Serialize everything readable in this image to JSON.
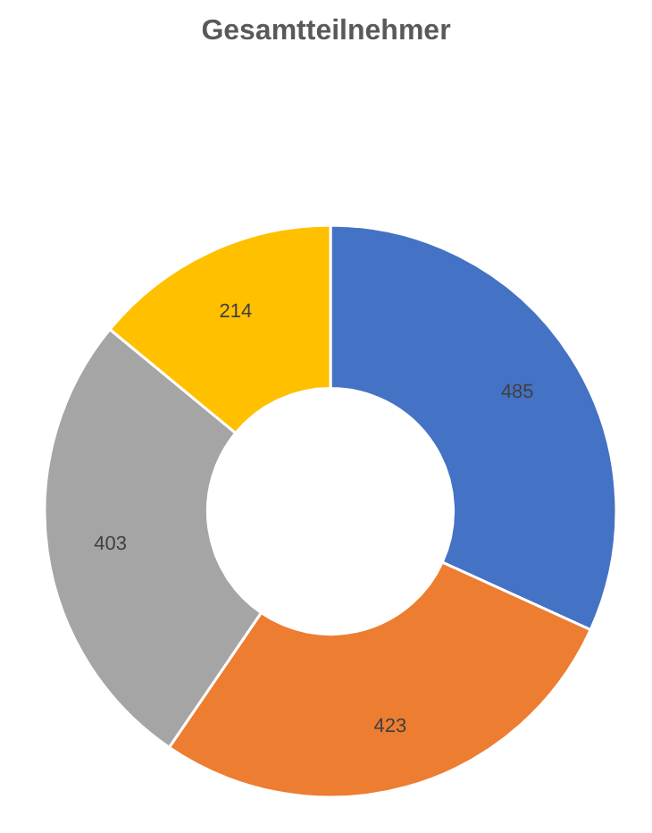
{
  "chart_data": {
    "type": "donut",
    "title": "Gesamtteilnehmer",
    "categories": [
      null,
      null,
      null,
      null
    ],
    "values": [
      485,
      423,
      403,
      214
    ],
    "colors": [
      "#4472c4",
      "#ed7d31",
      "#a5a5a5",
      "#ffc000"
    ],
    "data_labels": true
  }
}
